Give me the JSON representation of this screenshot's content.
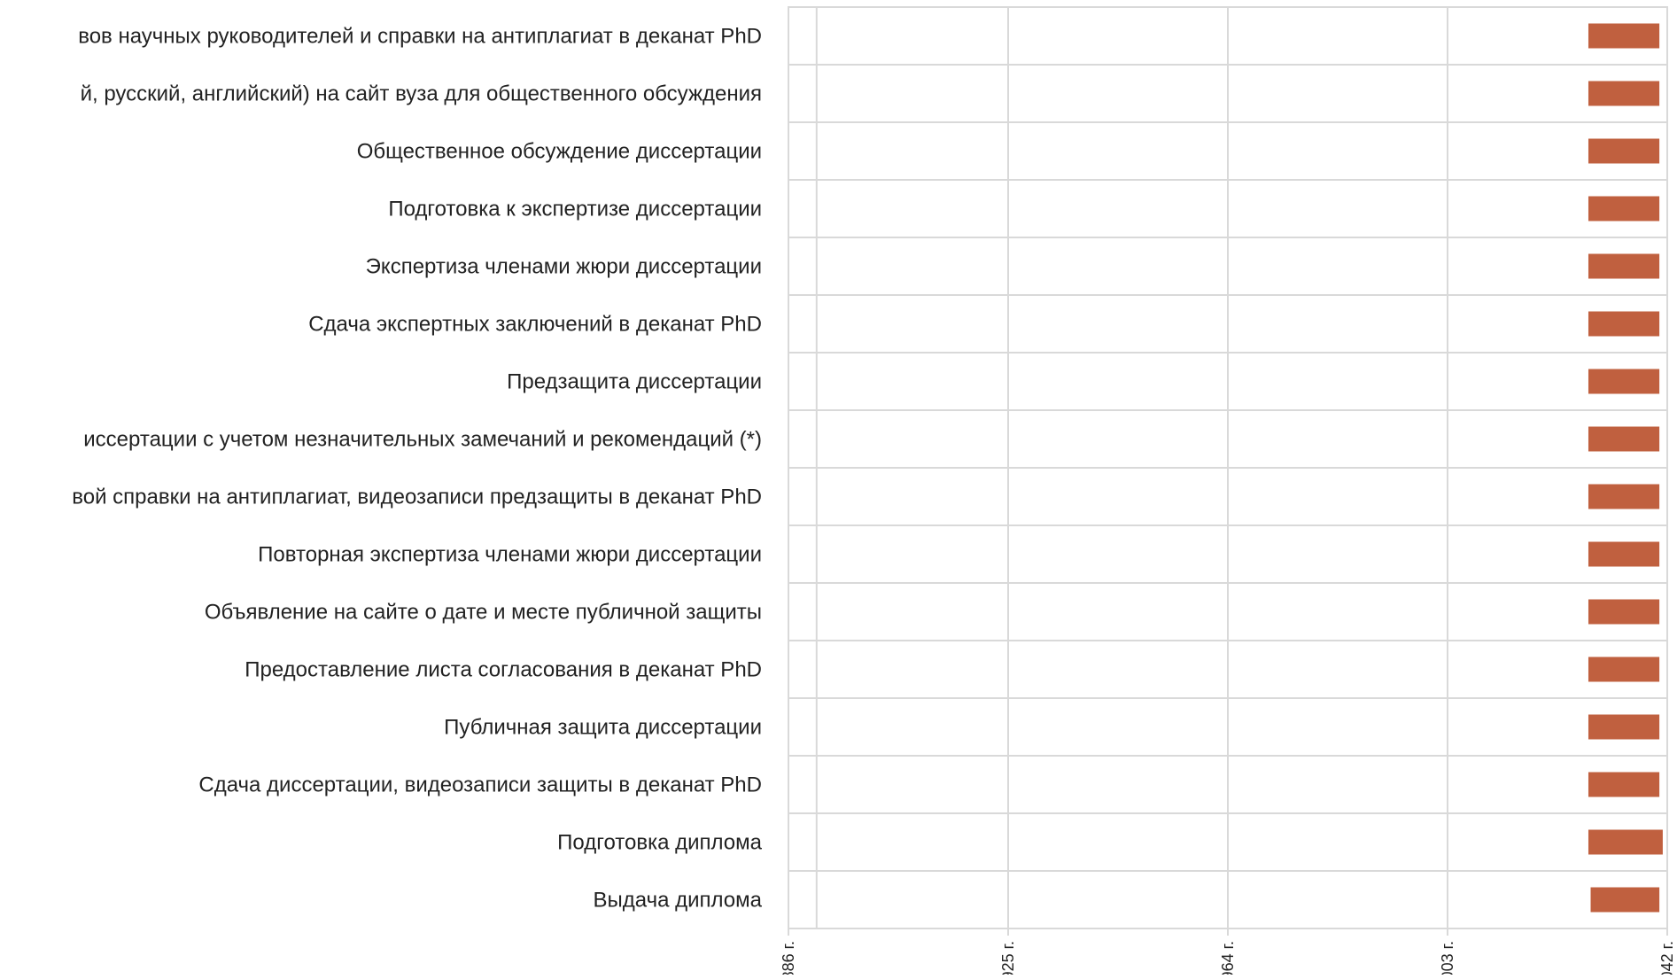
{
  "chart_data": {
    "type": "bar",
    "orientation": "horizontal",
    "categories": [
      "вов научных руководителей и справки на антиплагиат в деканат PhD",
      "й, русский, английский) на сайт вуза для общественного обсуждения",
      "Общественное обсуждение диссертации",
      "Подготовка к экспертизе диссертации",
      "Экспертиза членами жюри диссертации",
      "Сдача экспертных заключений в деканат  PhD",
      "Предзащита диссертации",
      "иссертации с учетом незначительных замечаний и рекомендаций (*)",
      "вой справки на антиплагиат, видеозаписи предзащиты в деканат PhD",
      "Повторная экспертиза членами жюри диссертации",
      "Объявление на сайте о дате и месте публичной защиты",
      "Предоставление листа согласования в деканат PhD",
      "Публичная защита диссертации",
      "Сдача  диссертации, видеозаписи защиты в деканат PhD",
      "Подготовка диплома",
      "Выдача диплома"
    ],
    "series": [
      {
        "color": "#c0603f",
        "start": [
          2028,
          2028,
          2028,
          2028,
          2028,
          2028,
          2028,
          2028,
          2028,
          2028,
          2028,
          2028,
          2028,
          2028,
          2028,
          2028.4
        ],
        "end": [
          2040.6,
          2040.6,
          2040.6,
          2040.6,
          2040.6,
          2040.6,
          2040.6,
          2040.6,
          2040.6,
          2040.6,
          2040.6,
          2040.6,
          2040.6,
          2040.6,
          2041.2,
          2040.6
        ]
      }
    ],
    "xlim": [
      1886,
      2042
    ],
    "x_ticks": [
      "886 г.",
      "925 г.",
      "964 г.",
      "003 г.",
      "042 г."
    ],
    "x_tick_values": [
      1886,
      1925,
      1964,
      2003,
      2042
    ],
    "x_grid_values": [
      1891,
      1925,
      1964,
      2003,
      2042
    ],
    "grid": true,
    "legend": "none"
  }
}
